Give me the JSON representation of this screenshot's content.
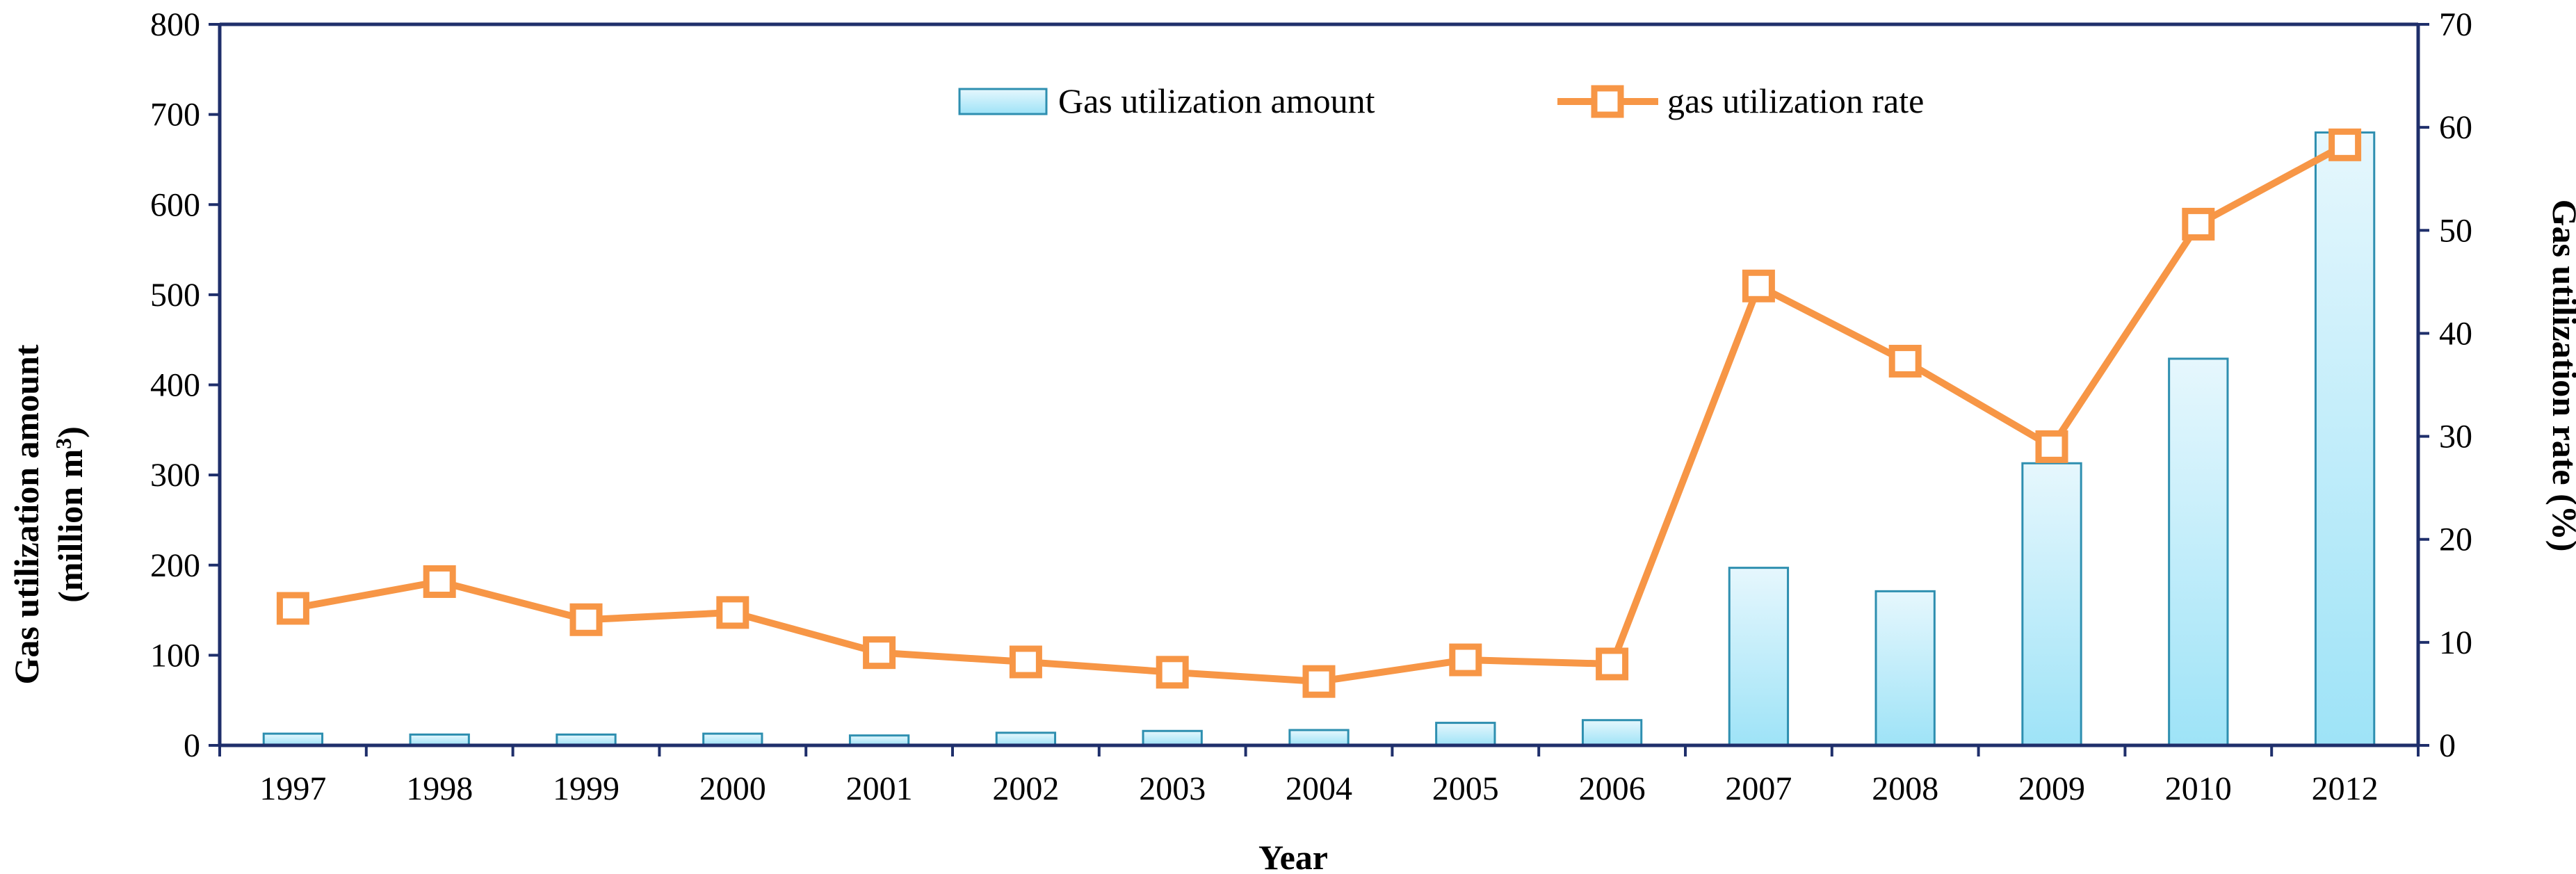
{
  "chart_data": {
    "type": "bar+line",
    "categories": [
      "1997",
      "1998",
      "1999",
      "2000",
      "2001",
      "2002",
      "2003",
      "2004",
      "2005",
      "2006",
      "2007",
      "2008",
      "2009",
      "2010",
      "2012"
    ],
    "series": [
      {
        "name": "Gas utilization amount",
        "kind": "bar",
        "axis": "left",
        "values": [
          13,
          12,
          12,
          13,
          11,
          14,
          16,
          17,
          25,
          28,
          197,
          171,
          313,
          429,
          680
        ]
      },
      {
        "name": "gas utilization rate",
        "kind": "line",
        "axis": "right",
        "values": [
          13.3,
          15.9,
          12.2,
          12.9,
          9.0,
          8.1,
          7.1,
          6.2,
          8.3,
          7.9,
          44.6,
          37.3,
          29.0,
          50.6,
          58.3
        ]
      }
    ],
    "xlabel": "Year",
    "ylabel_left": "Gas utilization amount",
    "ylabel_left_unit": "(million m",
    "ylabel_left_sup": "3",
    "ylabel_left_close": ")",
    "ylabel_right": "Gas utilization rate (%)",
    "ylim_left": [
      0,
      800
    ],
    "yticks_left": [
      "0",
      "100",
      "200",
      "300",
      "400",
      "500",
      "600",
      "700",
      "800"
    ],
    "ylim_right": [
      0,
      70
    ],
    "yticks_right": [
      "0",
      "10",
      "20",
      "30",
      "40",
      "50",
      "60",
      "70"
    ],
    "legend": [
      "Gas utilization amount",
      "gas utilization rate"
    ],
    "legend_position": "top-center",
    "colors": {
      "bar_fill_top": "#e6f7fd",
      "bar_fill_bottom": "#9ee3f7",
      "bar_stroke": "#2e8fb0",
      "line": "#f79646",
      "marker_fill": "#ffffff",
      "axis": "#1f2f6b"
    }
  }
}
